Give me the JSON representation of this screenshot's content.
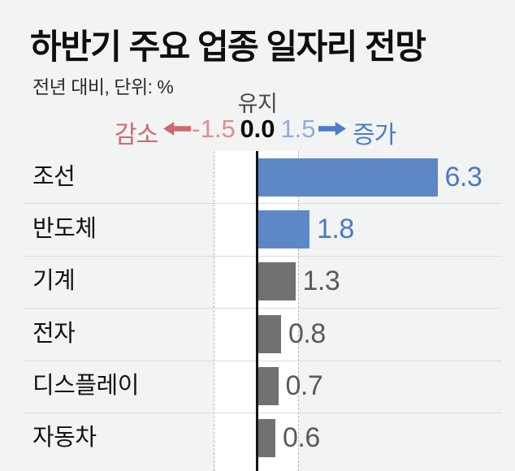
{
  "header": {
    "title": "하반기 주요 업종 일자리 전망",
    "subtitle": "전년 대비, 단위: %"
  },
  "axis": {
    "maintain_label": "유지",
    "decrease_label": "감소",
    "increase_label": "증가",
    "tick_labels": [
      "-1.5",
      "0.0",
      "1.5"
    ]
  },
  "chart_data": {
    "type": "bar",
    "orientation": "horizontal",
    "title": "하반기 주요 업종 일자리 전망",
    "subtitle": "전년 대비, 단위: %",
    "unit": "%",
    "categories": [
      "조선",
      "반도체",
      "기계",
      "전자",
      "디스플레이",
      "자동차"
    ],
    "values": [
      6.3,
      1.8,
      1.3,
      0.8,
      0.7,
      0.6
    ],
    "value_labels": [
      "6.3",
      "1.8",
      "1.3",
      "0.8",
      "0.7",
      "0.6"
    ],
    "x_ticks": [
      -1.5,
      0.0,
      1.5
    ],
    "xlim": [
      -1.5,
      6.8
    ],
    "zero_axis_label": "유지",
    "negative_direction_label": "감소",
    "positive_direction_label": "증가",
    "grid": "dashed vertical lines at -1.5 and +1.5, solid black line at 0.0",
    "legend": "none",
    "bar_colors": [
      "#5e87c8",
      "#5e87c8",
      "#717171",
      "#717171",
      "#717171",
      "#717171"
    ],
    "value_colors": [
      "#4a7ac0",
      "#4a7ac0",
      "#5a5a5a",
      "#5a5a5a",
      "#5a5a5a",
      "#5a5a5a"
    ]
  },
  "colors": {
    "background": "#f2f3f3",
    "highlight_band": "#ffffff",
    "blue_bar": "#5e87c8",
    "gray_bar": "#717171",
    "decrease_word": "#d0696b",
    "decrease_tick": "#dd8e8e",
    "increase_word": "#4d7dc6",
    "increase_tick": "#93abd9",
    "zero_line": "#141414",
    "row_separator": "#dcdcdc",
    "dashed_line": "#b5b5b5"
  }
}
